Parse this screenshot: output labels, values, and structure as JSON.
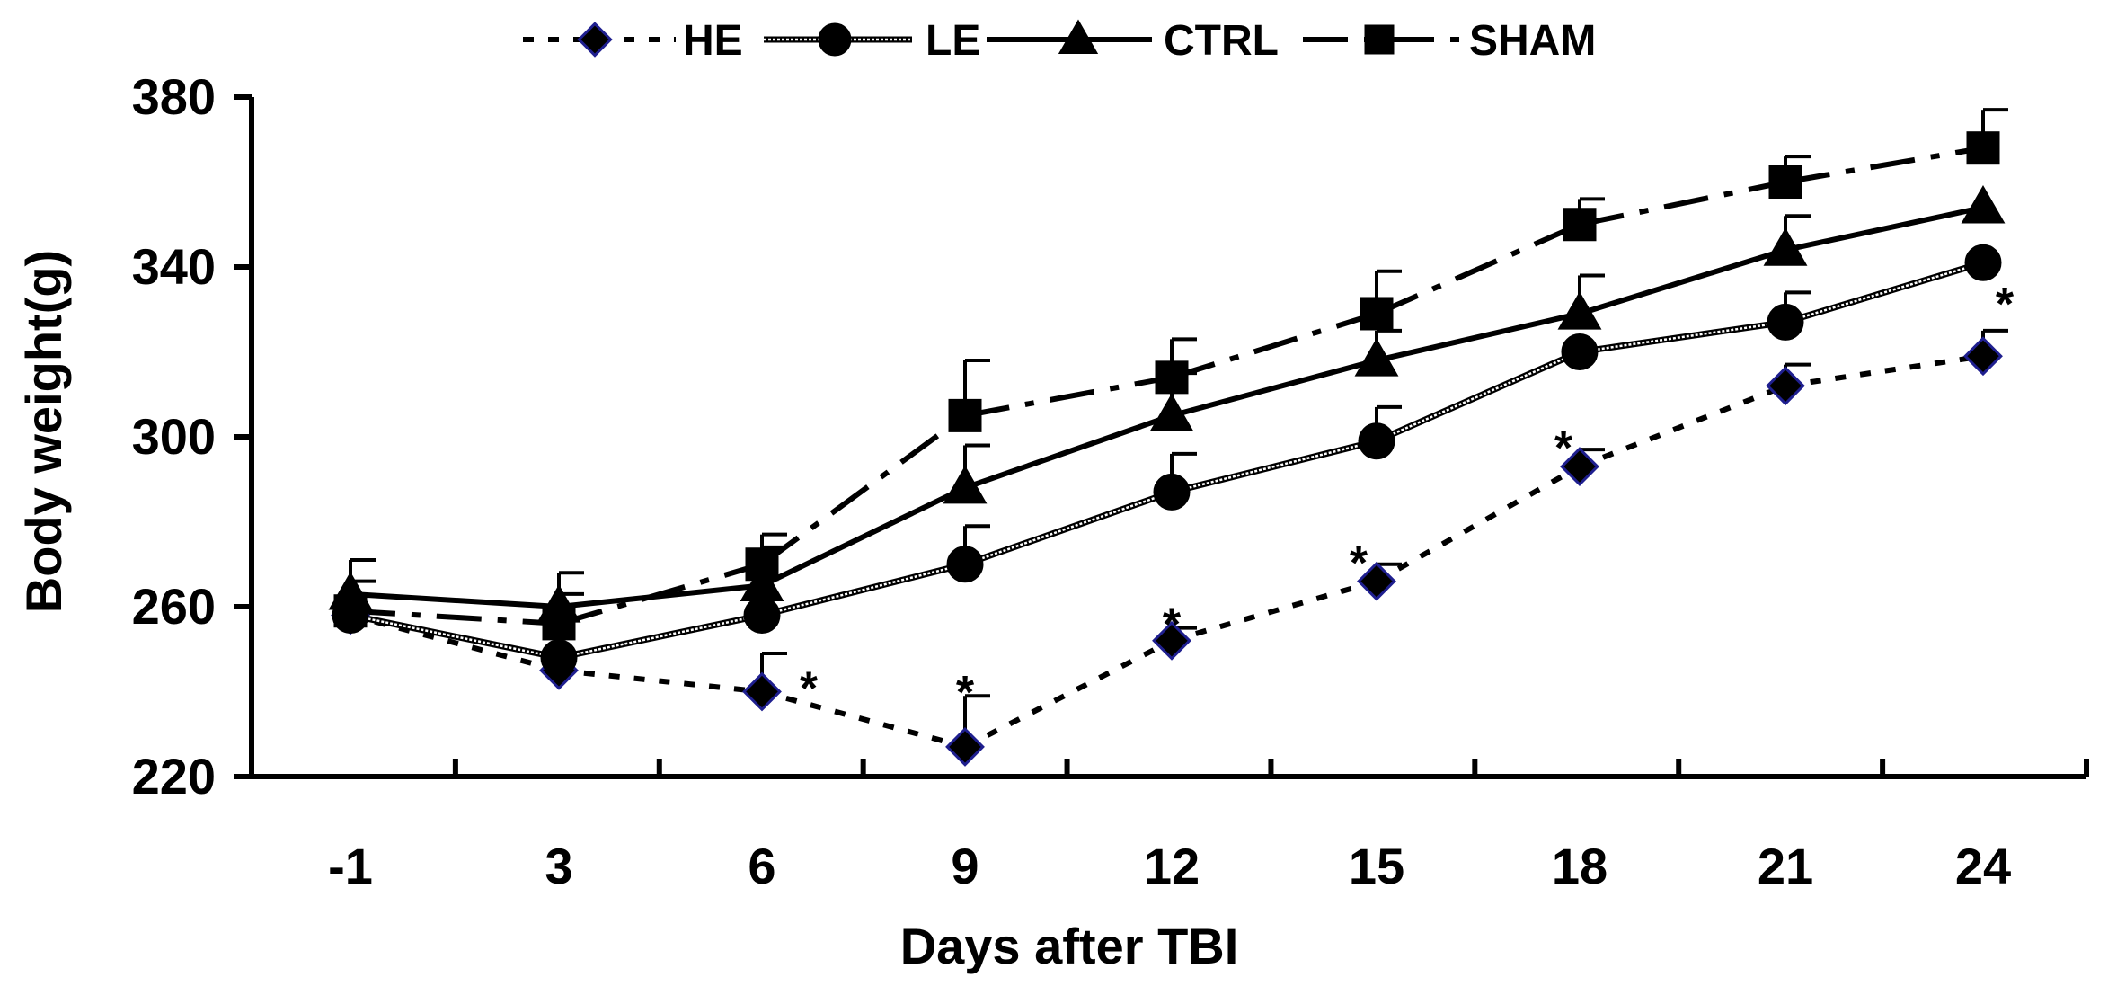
{
  "chart_data": {
    "type": "line",
    "title": "",
    "xlabel": "Days after TBI",
    "ylabel": "Body weight(g)",
    "categories": [
      "-1",
      "3",
      "6",
      "9",
      "12",
      "15",
      "18",
      "21",
      "24"
    ],
    "ylim": [
      220,
      380
    ],
    "yticks": [
      220,
      260,
      300,
      340,
      380
    ],
    "grid": false,
    "legend_position": "top-center",
    "series": [
      {
        "name": "HE",
        "marker": "diamond",
        "line_style": "dotted",
        "marker_fill": "#000000",
        "marker_edge": "#1f1f8f",
        "values": [
          258,
          245,
          240,
          227,
          252,
          266,
          293,
          312,
          319
        ],
        "errors": [
          0,
          0,
          9,
          12,
          3,
          4,
          4,
          5,
          6
        ]
      },
      {
        "name": "LE",
        "marker": "circle",
        "line_style": "double-thin",
        "marker_fill": "#000000",
        "marker_edge": "#000000",
        "values": [
          258,
          248,
          258,
          270,
          287,
          299,
          320,
          327,
          341
        ],
        "errors": [
          0,
          0,
          0,
          9,
          9,
          8,
          0,
          7,
          0
        ]
      },
      {
        "name": "CTRL",
        "marker": "triangle",
        "line_style": "solid",
        "marker_fill": "#000000",
        "marker_edge": "#000000",
        "values": [
          263,
          260,
          265,
          288,
          305,
          318,
          329,
          344,
          354
        ],
        "errors": [
          8,
          8,
          9,
          10,
          10,
          7,
          9,
          8,
          0
        ]
      },
      {
        "name": "SHAM",
        "marker": "square",
        "line_style": "dash-dot",
        "marker_fill": "#000000",
        "marker_edge": "#000000",
        "values": [
          259,
          256,
          270,
          305,
          314,
          329,
          350,
          360,
          368
        ],
        "errors": [
          7,
          7,
          7,
          13,
          9,
          10,
          6,
          6,
          9
        ]
      }
    ],
    "annotations": [
      {
        "category": "6",
        "text": "*"
      },
      {
        "category": "9",
        "text": "*"
      },
      {
        "category": "12",
        "text": "*"
      },
      {
        "category": "15",
        "text": "*"
      },
      {
        "category": "18",
        "text": "*"
      },
      {
        "category": "24",
        "text": "*"
      }
    ]
  }
}
